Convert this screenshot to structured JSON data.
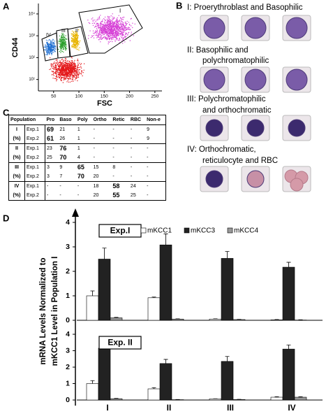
{
  "panel_labels": [
    "A",
    "B",
    "C",
    "D"
  ],
  "panel_a": {
    "ylabel": "CD44",
    "xlabel": "FSC",
    "xlim": [
      20,
      264
    ],
    "xticks": [
      50,
      100,
      150,
      200,
      250
    ],
    "log_y": true,
    "ylim": [
      3,
      30000
    ],
    "yticks": [
      {
        "value": 10,
        "label": "10¹"
      },
      {
        "value": 100,
        "label": "10²"
      },
      {
        "value": 1000,
        "label": "10³"
      },
      {
        "value": 10000,
        "label": "10⁴"
      }
    ],
    "gates": [
      "I",
      "II",
      "III",
      "IV"
    ]
  },
  "panel_b": {
    "stages": [
      {
        "lines": [
          "I: Proerythroblast and Basophilic"
        ]
      },
      {
        "lines": [
          "II:  Basophilic and",
          "polychromatophilic"
        ]
      },
      {
        "lines": [
          "III: Polychromatophilic",
          "and orthochromatic"
        ]
      },
      {
        "lines": [
          "IV: Orthochromatic,",
          "reticulocyte and RBC"
        ]
      }
    ]
  },
  "panel_c": {
    "header": [
      "Population",
      "Pro",
      "Baso",
      "Poly",
      "Ortho",
      "Retic",
      "RBC",
      "Non-e"
    ],
    "groups": [
      {
        "label": "I",
        "unit": "(%)",
        "rows": [
          {
            "exp": "Exp.1",
            "cells": [
              69,
              21,
              1,
              "-",
              "-",
              "-",
              9
            ],
            "bold": 0
          },
          {
            "exp": "Exp.2",
            "cells": [
              61,
              26,
              1,
              "-",
              "-",
              "-",
              9
            ],
            "bold": 0
          }
        ]
      },
      {
        "label": "II",
        "unit": "(%)",
        "rows": [
          {
            "exp": "Exp.1",
            "cells": [
              23,
              76,
              1,
              "-",
              "-",
              "-",
              "-"
            ],
            "bold": 1
          },
          {
            "exp": "Exp.2",
            "cells": [
              25,
              70,
              4,
              "-",
              "-",
              "-",
              "-"
            ],
            "bold": 1
          }
        ]
      },
      {
        "label": "III",
        "unit": "(%)",
        "rows": [
          {
            "exp": "Exp.1",
            "cells": [
              3,
              9,
              65,
              15,
              8,
              "-",
              "-"
            ],
            "bold": 2
          },
          {
            "exp": "Exp.2",
            "cells": [
              3,
              7,
              70,
              20,
              "-",
              "-",
              "-"
            ],
            "bold": 2
          }
        ]
      },
      {
        "label": "IV",
        "unit": "(%)",
        "rows": [
          {
            "exp": "Exp.1",
            "cells": [
              "-",
              "-",
              "-",
              18,
              58,
              24,
              "-"
            ],
            "bold": 4
          },
          {
            "exp": "Exp.2",
            "cells": [
              "-",
              "-",
              "-",
              20,
              55,
              25,
              "-"
            ],
            "bold": 4
          }
        ]
      }
    ]
  },
  "panel_d": {
    "ylabel": [
      "mRNA Levels Normalized to",
      "mKCC1 Level in Population I"
    ]
  },
  "chart_data": [
    {
      "type": "bar",
      "title": "Exp.I",
      "categories": [
        null,
        null,
        null,
        null
      ],
      "ylim": [
        0,
        4
      ],
      "yticks": [
        0,
        1,
        2,
        3,
        4
      ],
      "legend": true,
      "series": [
        {
          "name": "mKCC1",
          "color": "#ffffff",
          "values": [
            1.0,
            0.92,
            0.05,
            0.02
          ],
          "errors": [
            0.2,
            0.03,
            0.01,
            0.01
          ]
        },
        {
          "name": "mKCC3",
          "color": "#222222",
          "values": [
            2.5,
            3.08,
            2.53,
            2.17
          ],
          "errors": [
            0.45,
            0.45,
            0.28,
            0.2
          ]
        },
        {
          "name": "mKCC4",
          "color": "#999999",
          "values": [
            0.1,
            0.05,
            0.03,
            0.01
          ],
          "errors": [
            0.02,
            0.01,
            0.01,
            0.01
          ]
        }
      ]
    },
    {
      "type": "bar",
      "title": "Exp. II",
      "categories": [
        "I",
        "II",
        "III",
        "IV"
      ],
      "ylim": [
        0,
        4
      ],
      "yticks": [
        0,
        1,
        2,
        3,
        4
      ],
      "legend": false,
      "series": [
        {
          "color": "#ffffff",
          "values": [
            1.0,
            0.68,
            0.07,
            0.17
          ],
          "errors": [
            0.18,
            0.07,
            0.01,
            0.03
          ]
        },
        {
          "color": "#222222",
          "values": [
            3.15,
            2.22,
            2.35,
            3.1
          ],
          "errors": [
            0.5,
            0.25,
            0.3,
            0.25
          ]
        },
        {
          "color": "#999999",
          "values": [
            0.08,
            0.02,
            0.03,
            0.17
          ],
          "errors": [
            0.02,
            0.01,
            0.01,
            0.03
          ]
        }
      ]
    }
  ]
}
